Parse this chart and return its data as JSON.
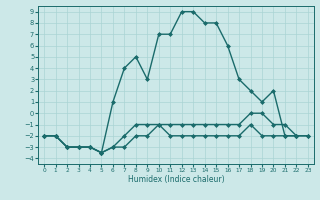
{
  "xlabel": "Humidex (Indice chaleur)",
  "bg_color": "#cce8e8",
  "line_color": "#1a6b6b",
  "grid_color": "#aad4d4",
  "xlim": [
    -0.5,
    23.5
  ],
  "ylim": [
    -4.5,
    9.5
  ],
  "xticks": [
    0,
    1,
    2,
    3,
    4,
    5,
    6,
    7,
    8,
    9,
    10,
    11,
    12,
    13,
    14,
    15,
    16,
    17,
    18,
    19,
    20,
    21,
    22,
    23
  ],
  "yticks": [
    -4,
    -3,
    -2,
    -1,
    0,
    1,
    2,
    3,
    4,
    5,
    6,
    7,
    8,
    9
  ],
  "line1_x": [
    0,
    1,
    2,
    3,
    4,
    5,
    6,
    7,
    8,
    9,
    10,
    11,
    12,
    13,
    14,
    15,
    16,
    17,
    18,
    19,
    20,
    21,
    22,
    23
  ],
  "line1_y": [
    -2,
    -2,
    -3,
    -3,
    -3,
    -3.5,
    -3,
    -3,
    -2,
    -2,
    -1,
    -2,
    -2,
    -2,
    -2,
    -2,
    -2,
    -2,
    -1,
    -2,
    -2,
    -2,
    -2,
    -2
  ],
  "line2_x": [
    0,
    1,
    2,
    3,
    4,
    5,
    6,
    7,
    8,
    9,
    10,
    11,
    12,
    13,
    14,
    15,
    16,
    17,
    18,
    19,
    20,
    21,
    22,
    23
  ],
  "line2_y": [
    -2,
    -2,
    -3,
    -3,
    -3,
    -3.5,
    -3,
    -2,
    -1,
    -1,
    -1,
    -1,
    -1,
    -1,
    -1,
    -1,
    -1,
    -1,
    0,
    0,
    -1,
    -1,
    -2,
    -2
  ],
  "line3_x": [
    0,
    1,
    2,
    3,
    4,
    5,
    6,
    7,
    8,
    9,
    10,
    11,
    12,
    13,
    14,
    15,
    16,
    17,
    18,
    19,
    20,
    21,
    22
  ],
  "line3_y": [
    -2,
    -2,
    -3,
    -3,
    -3,
    -3.5,
    1,
    4,
    5,
    3,
    7,
    7,
    9,
    9,
    8,
    8,
    6,
    3,
    2,
    1,
    2,
    -2,
    -2
  ],
  "markersize": 2,
  "linewidth": 1.0
}
